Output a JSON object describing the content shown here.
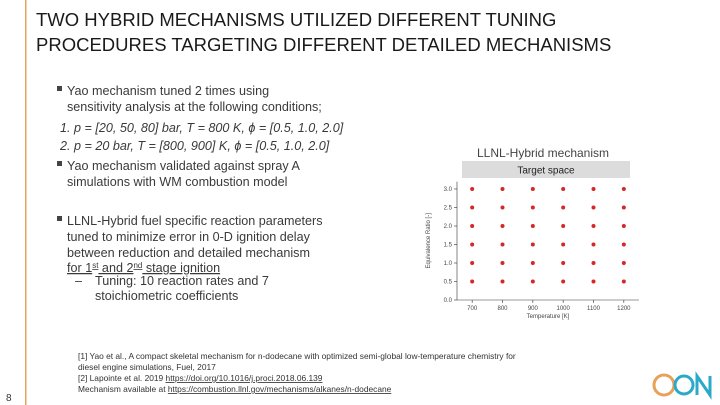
{
  "title": [
    "TWO HYBRID MECHANISMS UTILIZED DIFFERENT TUNING",
    "PROCEDURES TARGETING DIFFERENT DETAILED MECHANISMS"
  ],
  "bullets": [
    {
      "lines": [
        "Yao mechanism tuned 2 times using",
        "sensitivity analysis at the following conditions;"
      ],
      "numbered": [
        "1. p = [20, 50, 80] bar, T = 800 K, ϕ = [0.5, 1.0, 2.0]",
        "2. p = 20 bar, T = [800, 900] K, ϕ = [0.5, 1.0, 2.0]"
      ]
    },
    {
      "lines": [
        "Yao mechanism validated against spray A",
        "simulations with WM combustion model"
      ]
    },
    {
      "lines": [
        "LLNL-Hybrid fuel specific reaction parameters",
        "tuned to minimize error in 0-D ignition delay",
        "between reduction and detailed mechanism"
      ],
      "rich": [
        {
          "text": "for 1"
        },
        {
          "text": "st",
          "sup": true
        },
        {
          "text": " and 2"
        },
        {
          "text": "nd",
          "sup": true
        },
        {
          "text": " stage ignition"
        }
      ],
      "sub": {
        "marker": "–",
        "lines": [
          "Tuning: 10 reaction rates and 7",
          "stoichiometric coefficients"
        ]
      }
    }
  ],
  "figure_label": "LLNL-Hybrid mechanism",
  "chart_data": {
    "type": "scatter",
    "title": "Target space",
    "x_label": "Temperature [K]",
    "y_label": "Equivalence Ratio [-]",
    "xlim": [
      650,
      1250
    ],
    "ylim": [
      0,
      3.2
    ],
    "xticks": [
      700,
      800,
      900,
      1000,
      1100,
      1200
    ],
    "yticks": [
      {
        "value": 0,
        "label": "0.0"
      },
      0.5,
      {
        "value": 1,
        "label": "1.0"
      },
      1.5,
      {
        "value": 2,
        "label": "2.0"
      },
      2.5,
      {
        "value": 3,
        "label": "3.0"
      }
    ],
    "color": "#d62728",
    "x": [
      700,
      800,
      900,
      1000,
      1100,
      1200,
      700,
      800,
      900,
      1000,
      1100,
      1200,
      700,
      800,
      900,
      1000,
      1100,
      1200,
      700,
      800,
      900,
      1000,
      1100,
      1200,
      700,
      800,
      900,
      1000,
      1100,
      1200,
      700,
      800,
      900,
      1000,
      1100,
      1200
    ],
    "y": [
      3,
      3,
      3,
      3,
      3,
      3,
      2.5,
      2.5,
      2.5,
      2.5,
      2.5,
      2.5,
      2,
      2,
      2,
      2,
      2,
      2,
      1.5,
      1.5,
      1.5,
      1.5,
      1.5,
      1.5,
      1,
      1,
      1,
      1,
      1,
      1,
      0.5,
      0.5,
      0.5,
      0.5,
      0.5,
      0.5
    ]
  },
  "references": [
    [
      {
        "text": "[1] Yao et al., A compact skeletal mechanism for n-dodecane with optimized semi-global low-temperature chemistry for"
      }
    ],
    [
      {
        "text": "diesel engine simulations, Fuel, 2017"
      }
    ],
    [
      {
        "text": "[2] Lapointe et al. 2019 "
      },
      {
        "text": "https://doi.org/10.1016/j.proci.2018.06.139",
        "link": true
      }
    ],
    [
      {
        "text": "Mechanism available at "
      },
      {
        "text": "https://combustion.llnl.gov/mechanisms/alkanes/n-dodecane",
        "link": true
      }
    ]
  ],
  "page_number": "8"
}
